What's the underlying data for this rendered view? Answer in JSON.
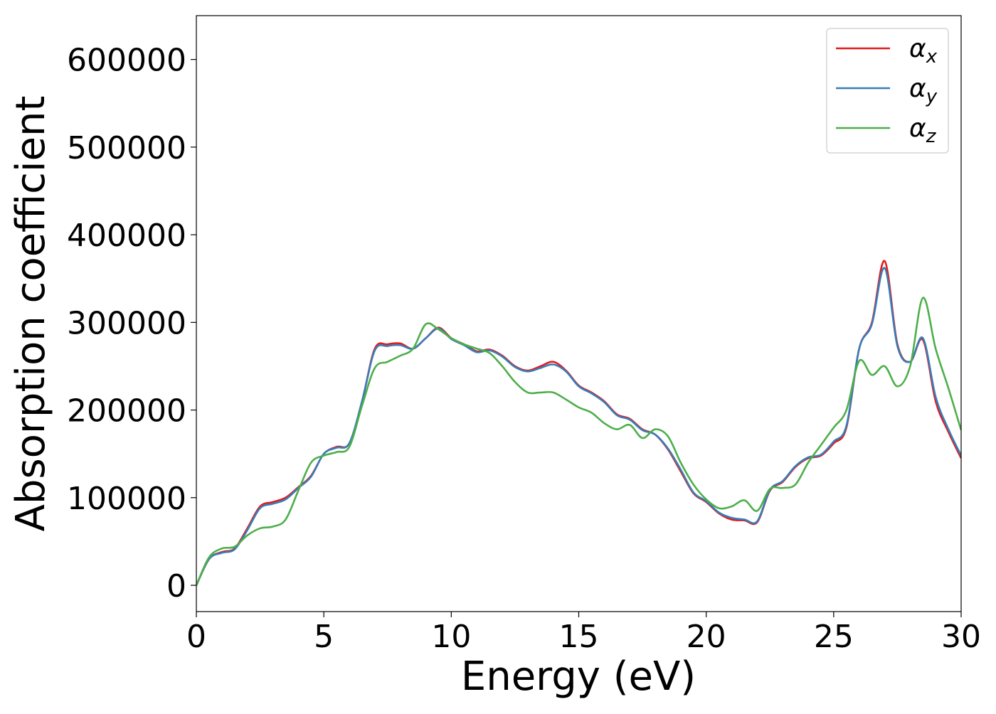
{
  "chart_data": {
    "type": "line",
    "title": "",
    "xlabel": "Energy (eV)",
    "ylabel": "Absorption coefficient",
    "xlim": [
      0,
      30
    ],
    "ylim": [
      -30000,
      650000
    ],
    "xticks": [
      0,
      5,
      10,
      15,
      20,
      25,
      30
    ],
    "xtick_labels": [
      "0",
      "5",
      "10",
      "15",
      "20",
      "25",
      "30"
    ],
    "yticks": [
      0,
      100000,
      200000,
      300000,
      400000,
      500000,
      600000
    ],
    "ytick_labels": [
      "0",
      "100000",
      "200000",
      "300000",
      "400000",
      "500000",
      "600000"
    ],
    "grid": false,
    "legend_position": "top-right",
    "series": [
      {
        "name": "α_x",
        "label_base": "α",
        "label_sub": "x",
        "color": "#e41a1c",
        "x": [
          0,
          0.5,
          1,
          1.5,
          2,
          2.5,
          3,
          3.5,
          4,
          4.5,
          5,
          5.5,
          6,
          6.5,
          7,
          7.5,
          8,
          8.5,
          9,
          9.5,
          10,
          10.5,
          11,
          11.5,
          12,
          12.5,
          13,
          13.5,
          14,
          14.5,
          15,
          15.5,
          16,
          16.5,
          17,
          17.5,
          18,
          18.5,
          19,
          19.5,
          20,
          20.5,
          21,
          21.5,
          22,
          22.5,
          23,
          23.5,
          24,
          24.5,
          25,
          25.5,
          26,
          26.5,
          27,
          27.5,
          28,
          28.5,
          29,
          29.5,
          30
        ],
        "y": [
          0,
          30000,
          38000,
          42000,
          65000,
          90000,
          95000,
          100000,
          112000,
          125000,
          150000,
          158000,
          162000,
          210000,
          270000,
          275000,
          276000,
          270000,
          282000,
          294000,
          282000,
          275000,
          267000,
          269000,
          262000,
          250000,
          245000,
          250000,
          255000,
          245000,
          228000,
          220000,
          210000,
          195000,
          190000,
          178000,
          172000,
          155000,
          130000,
          105000,
          95000,
          82000,
          75000,
          74000,
          72000,
          108000,
          118000,
          135000,
          145000,
          148000,
          162000,
          180000,
          270000,
          300000,
          370000,
          275000,
          255000,
          280000,
          210000,
          175000,
          145000
        ]
      },
      {
        "name": "α_y",
        "label_base": "α",
        "label_sub": "y",
        "color": "#377eb8",
        "x": [
          0,
          0.5,
          1,
          1.5,
          2,
          2.5,
          3,
          3.5,
          4,
          4.5,
          5,
          5.5,
          6,
          6.5,
          7,
          7.5,
          8,
          8.5,
          9,
          9.5,
          10,
          10.5,
          11,
          11.5,
          12,
          12.5,
          13,
          13.5,
          14,
          14.5,
          15,
          15.5,
          16,
          16.5,
          17,
          17.5,
          18,
          18.5,
          19,
          19.5,
          20,
          20.5,
          21,
          21.5,
          22,
          22.5,
          23,
          23.5,
          24,
          24.5,
          25,
          25.5,
          26,
          26.5,
          27,
          27.5,
          28,
          28.5,
          29,
          29.5,
          30
        ],
        "y": [
          0,
          30000,
          37000,
          41000,
          63000,
          88000,
          93000,
          98000,
          111000,
          124000,
          150000,
          157000,
          162000,
          210000,
          268000,
          273000,
          274000,
          270000,
          282000,
          293000,
          281000,
          274000,
          266000,
          268000,
          261000,
          249000,
          244000,
          248000,
          252000,
          244000,
          227000,
          219000,
          209000,
          194000,
          189000,
          177000,
          172000,
          156000,
          132000,
          106000,
          96000,
          83000,
          77000,
          75000,
          73000,
          109000,
          119000,
          136000,
          146000,
          149000,
          164000,
          182000,
          270000,
          298000,
          362000,
          273000,
          255000,
          282000,
          215000,
          178000,
          148000
        ]
      },
      {
        "name": "α_z",
        "label_base": "α",
        "label_sub": "z",
        "color": "#4daf4a",
        "x": [
          0,
          0.5,
          1,
          1.5,
          2,
          2.5,
          3,
          3.5,
          4,
          4.5,
          5,
          5.5,
          6,
          6.5,
          7,
          7.5,
          8,
          8.5,
          9,
          9.5,
          10,
          10.5,
          11,
          11.5,
          12,
          12.5,
          13,
          13.5,
          14,
          14.5,
          15,
          15.5,
          16,
          16.5,
          17,
          17.5,
          18,
          18.5,
          19,
          19.5,
          20,
          20.5,
          21,
          21.5,
          22,
          22.5,
          23,
          23.5,
          24,
          24.5,
          25,
          25.5,
          26,
          26.5,
          27,
          27.5,
          28,
          28.5,
          29,
          29.5,
          30
        ],
        "y": [
          0,
          32000,
          42000,
          44000,
          57000,
          65000,
          67000,
          75000,
          108000,
          140000,
          148000,
          152000,
          158000,
          205000,
          248000,
          255000,
          262000,
          270000,
          298000,
          292000,
          282000,
          275000,
          270000,
          265000,
          250000,
          232000,
          220000,
          220000,
          220000,
          212000,
          203000,
          197000,
          185000,
          178000,
          183000,
          168000,
          178000,
          170000,
          140000,
          115000,
          98000,
          88000,
          90000,
          97000,
          85000,
          110000,
          111000,
          115000,
          140000,
          160000,
          180000,
          200000,
          256000,
          240000,
          250000,
          227000,
          250000,
          328000,
          270000,
          225000,
          177000
        ]
      }
    ]
  }
}
